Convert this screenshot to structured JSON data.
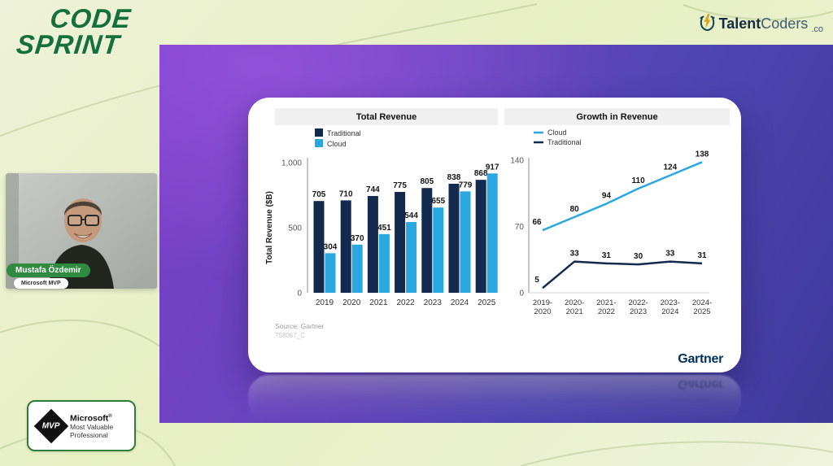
{
  "branding": {
    "code_sprint": {
      "line1": "CODE",
      "line2": "SPRINT"
    },
    "talentcoders": {
      "talent": "Talent",
      "coders": "Coders",
      "tld": ".co"
    }
  },
  "webcam": {
    "name": "Mustafa Özdemir",
    "badge": "Microsoft MVP"
  },
  "mvp_badge": {
    "diamond": "MVP",
    "brand": "Microsoft",
    "reg": "®",
    "line2": "Most Valuable",
    "line3": "Professional"
  },
  "slide": {
    "source": "Source: Gartner",
    "doc_id": "758067_C",
    "gartner": "Gartner"
  },
  "chart_data": [
    {
      "type": "bar",
      "title": "Total Revenue",
      "xlabel": "",
      "ylabel": "Total Revenue ($B)",
      "categories": [
        "2019",
        "2020",
        "2021",
        "2022",
        "2023",
        "2024",
        "2025"
      ],
      "series": [
        {
          "name": "Traditional",
          "color": "#13294e",
          "values": [
            705,
            710,
            744,
            775,
            805,
            838,
            868
          ]
        },
        {
          "name": "Cloud",
          "color": "#2aa7e0",
          "values": [
            304,
            370,
            451,
            544,
            655,
            779,
            917
          ]
        }
      ],
      "ylim": [
        0,
        1000
      ],
      "yticks": [
        {
          "v": 0,
          "label": "0"
        },
        {
          "v": 500,
          "label": "500"
        },
        {
          "v": 1000,
          "label": "1,000"
        }
      ],
      "grid": false,
      "legend_position": "top-left"
    },
    {
      "type": "line",
      "title": "Growth in Revenue",
      "xlabel": "",
      "ylabel": "",
      "categories": [
        "2019-2020",
        "2020-2021",
        "2021-2022",
        "2022-2023",
        "2023-2024",
        "2024-2025"
      ],
      "series": [
        {
          "name": "Cloud",
          "color": "#2aa7e0",
          "values": [
            66,
            80,
            94,
            110,
            124,
            138
          ]
        },
        {
          "name": "Traditional",
          "color": "#13294e",
          "values": [
            5,
            33,
            31,
            30,
            33,
            31
          ]
        }
      ],
      "ylim": [
        0,
        140
      ],
      "yticks": [
        {
          "v": 0,
          "label": "0"
        },
        {
          "v": 70,
          "label": "70"
        },
        {
          "v": 140,
          "label": "140"
        }
      ],
      "grid": false,
      "legend_position": "top-left"
    }
  ]
}
